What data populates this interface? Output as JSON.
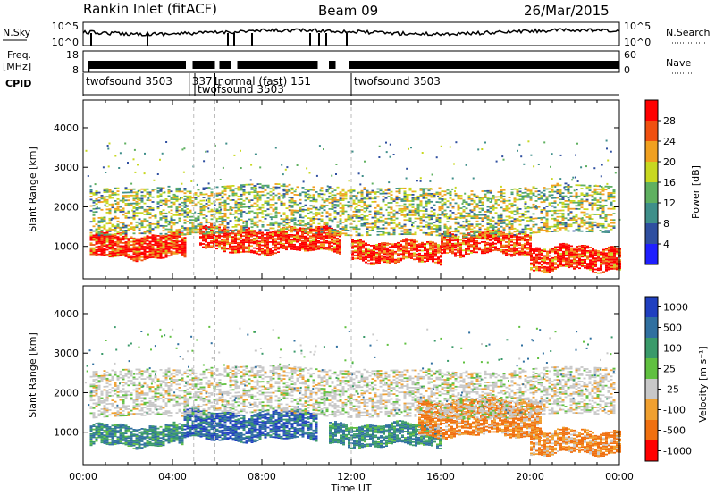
{
  "header": {
    "station": "Rankin Inlet (fitACF)",
    "beam": "Beam 09",
    "date": "26/Mar/2015"
  },
  "strips": {
    "nsky_label": "N.Sky",
    "nsearch_label": "N.Search",
    "freq_label_1": "Freq.",
    "freq_label_2": "[MHz]",
    "nave_label": "Nave",
    "cpid_label": "CPID",
    "noise_ticks_left": [
      "10^5",
      "10^0"
    ],
    "noise_ticks_right": [
      "10^5",
      "10^0"
    ],
    "freq_ticks": [
      "18",
      "8"
    ],
    "nave_ticks": [
      "60",
      "0"
    ],
    "cpid_segments": [
      {
        "label": "twofsound 3503",
        "start_hour": 0.0,
        "end_hour": 4.75
      },
      {
        "label": "3371",
        "start_hour": 4.75,
        "end_hour": 5.9
      },
      {
        "label": "normal (fast) 151",
        "start_hour": 5.9,
        "end_hour": 12.0
      },
      {
        "label": "twofsound 3503",
        "start_hour": 5.0,
        "end_hour": 12.0
      },
      {
        "label": "twofsound 3503",
        "start_hour": 12.0,
        "end_hour": 24.0
      }
    ]
  },
  "chart_data": [
    {
      "type": "heatmap",
      "title": "",
      "ylabel": "Slant Range [km]",
      "xlabel": "Time UT",
      "xlim_hours": [
        0,
        24
      ],
      "ylim": [
        180,
        4700
      ],
      "yticks": [
        1000,
        2000,
        3000,
        4000
      ],
      "xtick_labels": [
        "00:00",
        "04:00",
        "08:00",
        "12:00",
        "16:00",
        "20:00",
        "00:00"
      ],
      "colorbar_label": "Power [dB]",
      "colorbar_ticks": [
        4,
        8,
        12,
        16,
        20,
        24,
        28
      ],
      "colorscale": [
        "#1f1fff",
        "#2f4fa0",
        "#3f8f8a",
        "#5fb060",
        "#c8d820",
        "#f0a020",
        "#f05010",
        "#ff0000"
      ],
      "bands": [
        {
          "hour_start": 0.3,
          "hour_end": 4.6,
          "range_low": 700,
          "range_high": 1300,
          "level": "high"
        },
        {
          "hour_start": 5.2,
          "hour_end": 11.5,
          "range_low": 850,
          "range_high": 1450,
          "level": "high"
        },
        {
          "hour_start": 12.0,
          "hour_end": 16.0,
          "range_low": 600,
          "range_high": 1100,
          "level": "high"
        },
        {
          "hour_start": 16.0,
          "hour_end": 20.0,
          "range_low": 800,
          "range_high": 1350,
          "level": "high"
        },
        {
          "hour_start": 20.0,
          "hour_end": 24.0,
          "range_low": 400,
          "range_high": 1000,
          "level": "high"
        },
        {
          "hour_start": 0.3,
          "hour_end": 23.8,
          "range_low": 1300,
          "range_high": 2500,
          "level": "mid"
        }
      ]
    },
    {
      "type": "heatmap",
      "title": "",
      "ylabel": "Slant Range [km]",
      "xlabel": "Time UT",
      "xlim_hours": [
        0,
        24
      ],
      "ylim": [
        180,
        4700
      ],
      "yticks": [
        1000,
        2000,
        3000,
        4000
      ],
      "xtick_labels": [
        "00:00",
        "04:00",
        "08:00",
        "12:00",
        "16:00",
        "20:00",
        "00:00"
      ],
      "colorbar_label": "Velocity [m s⁻¹]",
      "colorbar_ticks": [
        "1000",
        "500",
        "100",
        "25",
        "-25",
        "-100",
        "-500",
        "-1000"
      ],
      "colorscale": [
        "#2040c0",
        "#3070a0",
        "#3a9a6a",
        "#60c040",
        "#c8c8c8",
        "#f0a030",
        "#f07010",
        "#ff0000"
      ],
      "bands": [
        {
          "hour_start": 0.3,
          "hour_end": 4.5,
          "range_low": 650,
          "range_high": 1150,
          "level": "green"
        },
        {
          "hour_start": 4.5,
          "hour_end": 10.5,
          "range_low": 800,
          "range_high": 1500,
          "level": "blue"
        },
        {
          "hour_start": 11.0,
          "hour_end": 16.0,
          "range_low": 650,
          "range_high": 1200,
          "level": "green"
        },
        {
          "hour_start": 15.0,
          "hour_end": 20.5,
          "range_low": 900,
          "range_high": 1800,
          "level": "orange"
        },
        {
          "hour_start": 20.0,
          "hour_end": 24.0,
          "range_low": 450,
          "range_high": 1050,
          "level": "orange"
        },
        {
          "hour_start": 0.3,
          "hour_end": 23.8,
          "range_low": 1400,
          "range_high": 2600,
          "level": "grey"
        }
      ]
    }
  ]
}
